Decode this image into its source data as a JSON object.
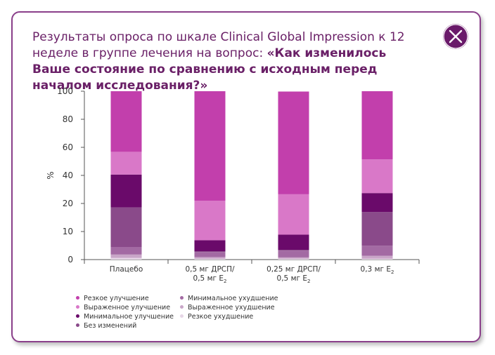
{
  "dialog": {
    "title_part1": "Результаты опроса по шкале Clinical Global Impression к 12 неделе в группе лечения на вопрос:",
    "title_question": "«Как изменилось Ваше состояние по сравнению с исходным перед началом исследования?»",
    "close_icon": "close-icon",
    "accent_color": "#6a1a6a"
  },
  "chart_data": {
    "type": "bar",
    "stacked": true,
    "ylabel": "%",
    "yticks": [
      "0",
      "10",
      "20",
      "40",
      "60",
      "80",
      "100"
    ],
    "categories": [
      {
        "line1": "Плацебо",
        "line2": "",
        "sub": ""
      },
      {
        "line1": "0,5 мг ДРСП/",
        "line2": "0,5 мг E",
        "sub": "2"
      },
      {
        "line1": "0,25 мг ДРСП/",
        "line2": "0,5 мг E",
        "sub": "2"
      },
      {
        "line1": "0,3 мг E",
        "line2": "",
        "sub": "2"
      }
    ],
    "series": [
      {
        "name": "Резкое ухудшение",
        "color": "#e6d6e6",
        "values": [
          1.0,
          0.5,
          0.5,
          0.5
        ]
      },
      {
        "name": "Выраженное ухудшение",
        "color": "#c9a6c8",
        "values": [
          2.0,
          1.0,
          0.8,
          1.8
        ]
      },
      {
        "name": "Минимальное ухудшение",
        "color": "#a36aa3",
        "values": [
          4.5,
          3.0,
          4.0,
          6.0
        ]
      },
      {
        "name": "Без изменений",
        "color": "#8a4a8a",
        "values": [
          23.5,
          0.5,
          0.5,
          20.0
        ]
      },
      {
        "name": "Минимальное улучшение",
        "color": "#6a0a6a",
        "values": [
          19.5,
          6.5,
          9.0,
          11.2
        ]
      },
      {
        "name": "Выраженное улучшение",
        "color": "#d978c8",
        "values": [
          13.5,
          23.5,
          24.0,
          20.0
        ]
      },
      {
        "name": "Резкое улучшение",
        "color": "#c23fac",
        "values": [
          36.0,
          65.0,
          61.0,
          40.5
        ]
      }
    ],
    "legend": [
      [
        "Резкое улучшение",
        "Выраженное улучшение",
        "Минимальное улучшение",
        "Без изменений"
      ],
      [
        "Минимальное ухудшение",
        "Выраженное ухудшение",
        "Резкое ухудшение"
      ]
    ],
    "legend_colors": {
      "Резкое улучшение": "#c23fac",
      "Выраженное улучшение": "#d978c8",
      "Минимальное улучшение": "#6a0a6a",
      "Без изменений": "#8a4a8a",
      "Минимальное ухудшение": "#a36aa3",
      "Выраженное ухудшение": "#c9a6c8",
      "Резкое ухудшение": "#e6d6e6"
    }
  }
}
